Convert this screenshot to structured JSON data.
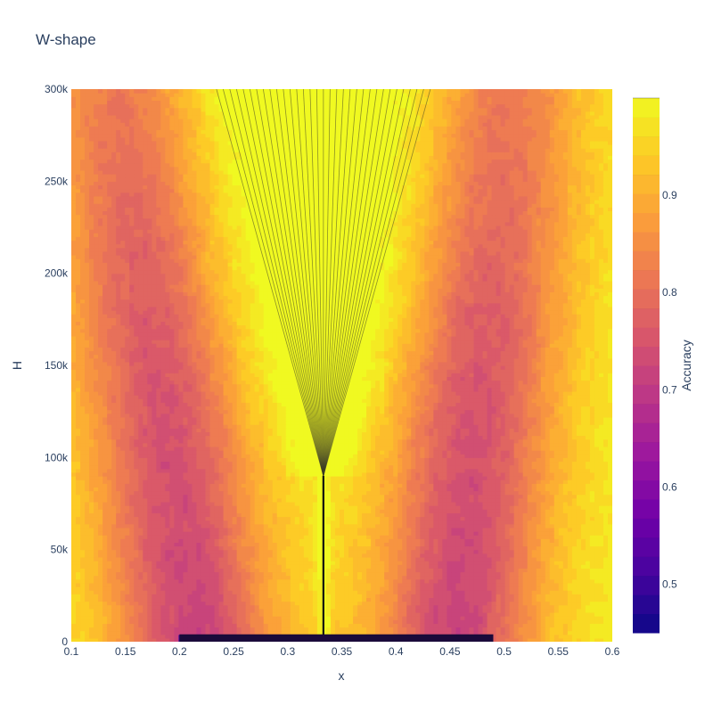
{
  "chart_data": {
    "type": "contour",
    "title": "W-shape",
    "xlabel": "x",
    "ylabel": "H",
    "xlim": [
      0.1,
      0.6
    ],
    "ylim": [
      0,
      300000
    ],
    "x_ticks": [
      {
        "value": 0.1,
        "label": "0.1"
      },
      {
        "value": 0.15,
        "label": "0.15"
      },
      {
        "value": 0.2,
        "label": "0.2"
      },
      {
        "value": 0.25,
        "label": "0.25"
      },
      {
        "value": 0.3,
        "label": "0.3"
      },
      {
        "value": 0.35,
        "label": "0.35"
      },
      {
        "value": 0.4,
        "label": "0.4"
      },
      {
        "value": 0.45,
        "label": "0.45"
      },
      {
        "value": 0.5,
        "label": "0.5"
      },
      {
        "value": 0.55,
        "label": "0.55"
      },
      {
        "value": 0.6,
        "label": "0.6"
      }
    ],
    "y_ticks": [
      {
        "value": 0,
        "label": "0"
      },
      {
        "value": 50000,
        "label": "50k"
      },
      {
        "value": 100000,
        "label": "100k"
      },
      {
        "value": 150000,
        "label": "150k"
      },
      {
        "value": 200000,
        "label": "200k"
      },
      {
        "value": 250000,
        "label": "250k"
      },
      {
        "value": 300000,
        "label": "300k"
      }
    ],
    "colorbar": {
      "title": "Accuracy",
      "range": [
        0.45,
        1.0
      ],
      "ticks": [
        {
          "value": 0.5,
          "label": "0.5"
        },
        {
          "value": 0.6,
          "label": "0.6"
        },
        {
          "value": 0.7,
          "label": "0.7"
        },
        {
          "value": 0.8,
          "label": "0.8"
        },
        {
          "value": 0.9,
          "label": "0.9"
        }
      ],
      "colorscale": [
        "#0d0887",
        "#46039f",
        "#7201a8",
        "#9c179e",
        "#bd3786",
        "#d8576b",
        "#ed7953",
        "#fb9f3a",
        "#fdca26",
        "#f0f921"
      ]
    },
    "z_description": {
      "split_point_x": 0.333,
      "split_H": 90000,
      "dips": [
        {
          "name": "left",
          "x_at_H0": 0.215,
          "x_at_H300k": 0.145,
          "min_accuracy": 0.72
        },
        {
          "name": "right",
          "x_at_H0": 0.455,
          "x_at_H300k": 0.5,
          "min_accuracy": 0.72
        }
      ],
      "edge_accuracy": 0.99,
      "bottom_row_accuracy": 0.45
    }
  }
}
